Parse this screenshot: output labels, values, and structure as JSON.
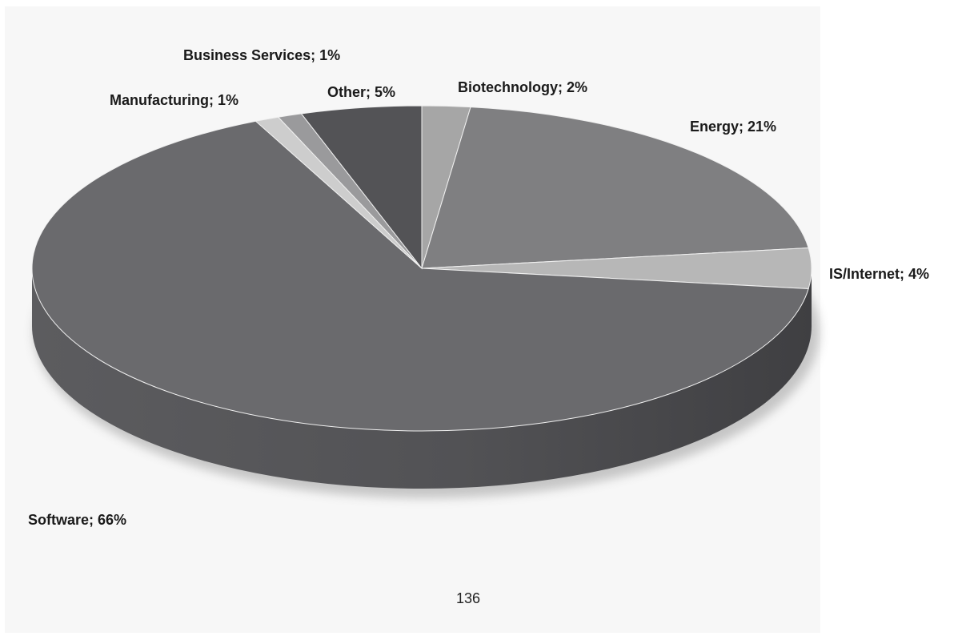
{
  "page": {
    "number": "136"
  },
  "chart_data": {
    "type": "pie",
    "style": "3d",
    "slices": [
      {
        "label": "Biotechnology",
        "value": 2,
        "text": "Biotechnology; 2%",
        "color": "#a6a6a6"
      },
      {
        "label": "Energy",
        "value": 21,
        "text": "Energy; 21%",
        "color": "#7f7f81"
      },
      {
        "label": "IS/Internet",
        "value": 4,
        "text": "IS/Internet; 4%",
        "color": "#b7b7b7"
      },
      {
        "label": "Software",
        "value": 66,
        "text": "Software; 66%",
        "color": "#6a6a6d"
      },
      {
        "label": "Manufacturing",
        "value": 1,
        "text": "Manufacturing; 1%",
        "color": "#cdcdcd"
      },
      {
        "label": "Business Services",
        "value": 1,
        "text": "Business Services; 1%",
        "color": "#9a9a9c"
      },
      {
        "label": "Other",
        "value": 5,
        "text": "Other; 5%",
        "color": "#535356"
      }
    ],
    "label_placement": "outside",
    "legend": "none"
  }
}
